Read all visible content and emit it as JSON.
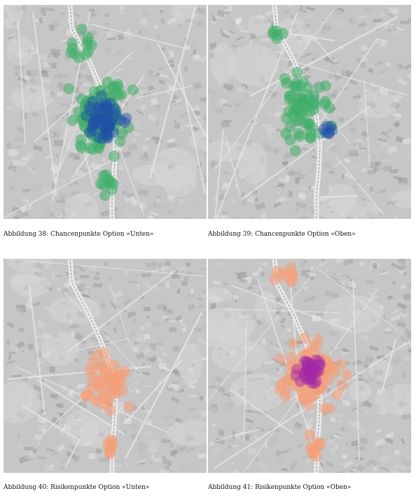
{
  "figures": [
    {
      "id": "38",
      "caption": "Abbildung 38: Chancenpunkte Option «Unten»",
      "kind": "chance",
      "variant": "unten"
    },
    {
      "id": "39",
      "caption": "Abbildung 39: Chancenpunkte Option «Oben»",
      "kind": "chance",
      "variant": "oben"
    },
    {
      "id": "40",
      "caption": "Abbildung 40: Risikenpunkte Option «Unten»",
      "kind": "risk",
      "variant": "unten"
    },
    {
      "id": "41",
      "caption": "Abbildung 41: Risikenpunkte Option «Oben»",
      "kind": "risk",
      "variant": "oben"
    }
  ],
  "colors": {
    "chance_light": "#3fae6a",
    "chance_dark": "#1f4fa8",
    "risk_light": "#f4a07a",
    "risk_dark": "#a128a8",
    "map_base": "#c9c9c9"
  }
}
